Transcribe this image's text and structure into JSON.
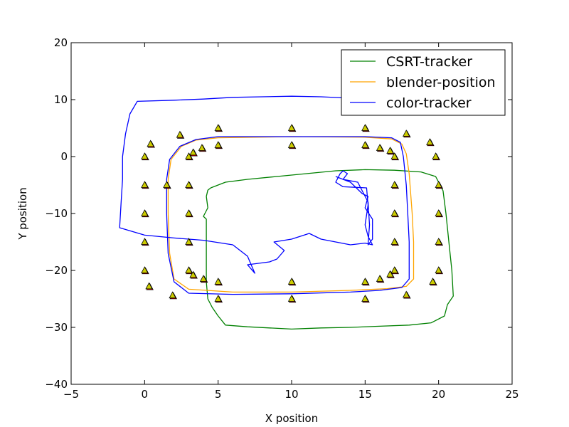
{
  "chart_data": {
    "type": "line",
    "title": "",
    "xlabel": "X position",
    "ylabel": "Y position",
    "xlim": [
      -5,
      25
    ],
    "ylim": [
      -40,
      20
    ],
    "x_ticks": [
      -5,
      0,
      5,
      10,
      15,
      20,
      25
    ],
    "y_ticks": [
      -40,
      -30,
      -20,
      -10,
      0,
      10,
      20
    ],
    "x_tick_labels": [
      "−5",
      "0",
      "5",
      "10",
      "15",
      "20",
      "25"
    ],
    "y_tick_labels": [
      "−40",
      "−30",
      "−20",
      "−10",
      "0",
      "10",
      "20"
    ],
    "grid": false,
    "legend_placement": "top-right",
    "series": [
      {
        "name": "CSRT-tracker",
        "color": "#008000",
        "points": [
          [
            4.5,
            -5.5
          ],
          [
            5.5,
            -4.5
          ],
          [
            7,
            -4
          ],
          [
            9,
            -3.5
          ],
          [
            11,
            -3
          ],
          [
            13,
            -2.5
          ],
          [
            15,
            -2.3
          ],
          [
            17,
            -2.4
          ],
          [
            18.8,
            -2.7
          ],
          [
            19.8,
            -3.5
          ],
          [
            20.3,
            -6
          ],
          [
            20.5,
            -10
          ],
          [
            20.7,
            -15
          ],
          [
            20.9,
            -20
          ],
          [
            21,
            -24.5
          ],
          [
            20.6,
            -26
          ],
          [
            20.4,
            -28
          ],
          [
            19.5,
            -29.2
          ],
          [
            18,
            -29.6
          ],
          [
            16,
            -29.8
          ],
          [
            14,
            -30
          ],
          [
            12,
            -30.1
          ],
          [
            10,
            -30.3
          ],
          [
            8.5,
            -30.1
          ],
          [
            7,
            -29.9
          ],
          [
            5.5,
            -29.6
          ],
          [
            5,
            -28
          ],
          [
            4.6,
            -26.5
          ],
          [
            4.3,
            -25
          ],
          [
            4.2,
            -22
          ],
          [
            4.2,
            -18
          ],
          [
            4.2,
            -14
          ],
          [
            4.2,
            -11
          ],
          [
            4,
            -10.5
          ],
          [
            4.3,
            -9
          ],
          [
            4.2,
            -7
          ],
          [
            4.3,
            -5.9
          ],
          [
            4.5,
            -5.5
          ]
        ]
      },
      {
        "name": "blender-position",
        "color": "#ffa500",
        "points": [
          [
            5,
            3.3
          ],
          [
            10,
            3.5
          ],
          [
            15,
            3.4
          ],
          [
            16.8,
            3.1
          ],
          [
            17.5,
            2.2
          ],
          [
            17.8,
            0.5
          ],
          [
            18,
            -3
          ],
          [
            18.2,
            -10
          ],
          [
            18.3,
            -15
          ],
          [
            18.3,
            -21.5
          ],
          [
            17.8,
            -22.8
          ],
          [
            16.5,
            -23.2
          ],
          [
            14,
            -23.5
          ],
          [
            10,
            -23.8
          ],
          [
            6,
            -23.8
          ],
          [
            3,
            -23.3
          ],
          [
            2,
            -21.5
          ],
          [
            1.7,
            -17
          ],
          [
            1.6,
            -10
          ],
          [
            1.6,
            -4
          ],
          [
            1.8,
            -0.5
          ],
          [
            2.5,
            1.8
          ],
          [
            3.5,
            2.9
          ],
          [
            5,
            3.3
          ]
        ]
      },
      {
        "name": "color-tracker",
        "color": "#0000ff",
        "points": [
          [
            14.5,
            8
          ],
          [
            14.5,
            10.2
          ],
          [
            12,
            10.5
          ],
          [
            10,
            10.6
          ],
          [
            8,
            10.5
          ],
          [
            6,
            10.4
          ],
          [
            4,
            10.1
          ],
          [
            2,
            9.9
          ],
          [
            -0.5,
            9.7
          ],
          [
            -1,
            7.5
          ],
          [
            -1.3,
            4
          ],
          [
            -1.5,
            0
          ],
          [
            -1.5,
            -4
          ],
          [
            -1.6,
            -8
          ],
          [
            -1.7,
            -12.5
          ],
          [
            0,
            -13.8
          ],
          [
            2,
            -14.3
          ],
          [
            4,
            -14.7
          ],
          [
            6,
            -15.5
          ],
          [
            7,
            -17.5
          ],
          [
            7.5,
            -20.5
          ],
          [
            7,
            -19
          ],
          [
            8.5,
            -18.5
          ],
          [
            9,
            -18
          ],
          [
            9.5,
            -16.5
          ],
          [
            8.8,
            -15
          ],
          [
            10,
            -14.5
          ],
          [
            11.2,
            -13.5
          ],
          [
            12,
            -14.5
          ],
          [
            13,
            -15
          ],
          [
            14,
            -15.5
          ],
          [
            15,
            -15.2
          ],
          [
            15.5,
            -15.5
          ],
          [
            15.2,
            -14
          ],
          [
            15,
            -12
          ],
          [
            15.2,
            -8.5
          ],
          [
            15.1,
            -5.5
          ],
          [
            13.5,
            -5.3
          ],
          [
            13,
            -4.5
          ],
          [
            13.3,
            -3
          ],
          [
            13.5,
            -2.5
          ],
          [
            13.8,
            -3
          ],
          [
            13.5,
            -4
          ],
          [
            14,
            -4.5
          ],
          [
            14.8,
            -6.5
          ],
          [
            15.2,
            -7
          ],
          [
            15,
            -9
          ],
          [
            15.5,
            -11
          ],
          [
            15.5,
            -13
          ],
          [
            15.5,
            -14.5
          ],
          [
            15.2,
            -15.5
          ],
          [
            15.3,
            -12
          ],
          [
            15.2,
            -8
          ],
          [
            14.8,
            -6
          ],
          [
            14.5,
            -4.5
          ],
          [
            13.5,
            -4
          ],
          [
            13,
            -3.5
          ]
        ],
        "loop": [
          [
            5,
            3.5
          ],
          [
            10,
            3.5
          ],
          [
            15,
            3.5
          ],
          [
            16.8,
            3.3
          ],
          [
            17.4,
            2.5
          ],
          [
            17.6,
            0
          ],
          [
            17.8,
            -5
          ],
          [
            17.9,
            -10
          ],
          [
            18,
            -15
          ],
          [
            18,
            -21.5
          ],
          [
            17.5,
            -23
          ],
          [
            16,
            -23.5
          ],
          [
            14,
            -23.8
          ],
          [
            10,
            -24.1
          ],
          [
            6,
            -24.2
          ],
          [
            3,
            -24
          ],
          [
            2,
            -22
          ],
          [
            1.6,
            -17
          ],
          [
            1.5,
            -10
          ],
          [
            1.5,
            -4
          ],
          [
            1.7,
            -0.5
          ],
          [
            2.4,
            1.8
          ],
          [
            3.5,
            3
          ],
          [
            5,
            3.5
          ]
        ]
      }
    ],
    "markers": [
      [
        0,
        0
      ],
      [
        0.4,
        2.2
      ],
      [
        0,
        -5
      ],
      [
        0,
        -10
      ],
      [
        0,
        -15
      ],
      [
        0,
        -20
      ],
      [
        0.3,
        -22.8
      ],
      [
        1.9,
        -24.4
      ],
      [
        2.4,
        3.8
      ],
      [
        3.3,
        0.7
      ],
      [
        3,
        0
      ],
      [
        1.5,
        -5
      ],
      [
        3,
        -5
      ],
      [
        3,
        -10
      ],
      [
        3,
        -15
      ],
      [
        3,
        -20
      ],
      [
        3.3,
        -20.8
      ],
      [
        4,
        -21.5
      ],
      [
        5,
        -22
      ],
      [
        5,
        -25
      ],
      [
        3.9,
        1.5
      ],
      [
        5,
        5
      ],
      [
        5,
        2
      ],
      [
        10,
        5
      ],
      [
        10,
        2
      ],
      [
        10,
        -22
      ],
      [
        10,
        -25
      ],
      [
        15,
        5
      ],
      [
        15,
        2
      ],
      [
        15,
        -22
      ],
      [
        15,
        -25
      ],
      [
        16,
        1.5
      ],
      [
        16.7,
        1
      ],
      [
        17,
        0
      ],
      [
        17,
        -5
      ],
      [
        17,
        -10
      ],
      [
        17,
        -15
      ],
      [
        17,
        -20
      ],
      [
        16.7,
        -20.7
      ],
      [
        16,
        -21.5
      ],
      [
        17.8,
        4
      ],
      [
        17.8,
        -24.3
      ],
      [
        19.4,
        2.5
      ],
      [
        19.8,
        0
      ],
      [
        20,
        -5
      ],
      [
        20,
        -10
      ],
      [
        20,
        -15
      ],
      [
        20,
        -20
      ],
      [
        19.6,
        -22
      ]
    ]
  }
}
